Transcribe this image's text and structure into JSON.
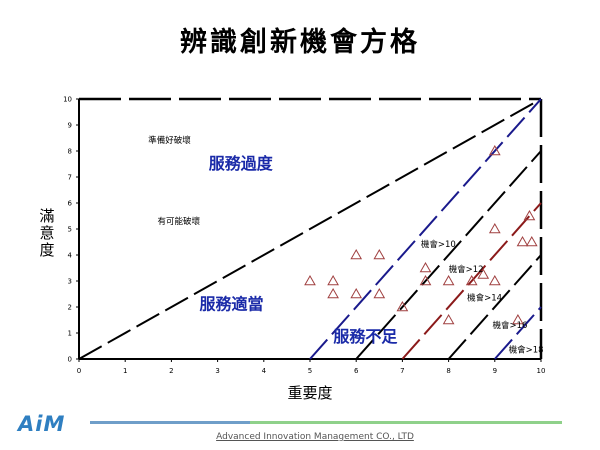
{
  "title": "辨識創新機會方格",
  "y_label": "滿意度",
  "x_label": "重要度",
  "footer": {
    "logo_text": "AiM",
    "company": "Advanced Innovation Management CO., LTD"
  },
  "colors": {
    "region_label": "#1a2aa8",
    "diagonal_blue": "#1a1a8c",
    "diagonal_red": "#8b1a1a",
    "marker": "#a04040",
    "footer_blue": "#6f9ec9",
    "footer_green": "#8fd18a"
  },
  "chart_data": {
    "type": "scatter",
    "xlim": [
      0,
      10
    ],
    "ylim": [
      0,
      10
    ],
    "x_ticks": [
      0,
      1,
      2,
      3,
      4,
      5,
      6,
      7,
      8,
      9,
      10
    ],
    "y_ticks": [
      0,
      1,
      2,
      3,
      4,
      5,
      6,
      7,
      8,
      9,
      10
    ],
    "grid": false,
    "points": [
      {
        "x": 5.0,
        "y": 3.0
      },
      {
        "x": 5.5,
        "y": 3.0
      },
      {
        "x": 5.5,
        "y": 2.5
      },
      {
        "x": 6.0,
        "y": 4.0
      },
      {
        "x": 6.0,
        "y": 2.5
      },
      {
        "x": 6.5,
        "y": 4.0
      },
      {
        "x": 6.5,
        "y": 2.5
      },
      {
        "x": 7.0,
        "y": 2.0
      },
      {
        "x": 7.5,
        "y": 3.5
      },
      {
        "x": 7.5,
        "y": 3.0
      },
      {
        "x": 8.0,
        "y": 3.0
      },
      {
        "x": 8.0,
        "y": 1.5
      },
      {
        "x": 8.5,
        "y": 3.0
      },
      {
        "x": 8.75,
        "y": 3.25
      },
      {
        "x": 9.0,
        "y": 8.0
      },
      {
        "x": 9.0,
        "y": 5.0
      },
      {
        "x": 9.0,
        "y": 3.0
      },
      {
        "x": 9.5,
        "y": 1.5
      },
      {
        "x": 9.6,
        "y": 4.5
      },
      {
        "x": 9.75,
        "y": 5.5
      },
      {
        "x": 9.8,
        "y": 4.5
      }
    ],
    "boundary_lines": [
      {
        "from": [
          0,
          0
        ],
        "to": [
          10,
          10
        ],
        "color": "black",
        "dashed": true
      },
      {
        "from": [
          5,
          0
        ],
        "to": [
          10,
          10
        ],
        "color": "blue",
        "dashed": true
      },
      {
        "from": [
          6,
          0
        ],
        "to": [
          10,
          8
        ],
        "color": "black",
        "dashed": true
      },
      {
        "from": [
          7,
          0
        ],
        "to": [
          10,
          6
        ],
        "color": "red",
        "dashed": true
      },
      {
        "from": [
          8,
          0
        ],
        "to": [
          10,
          4
        ],
        "color": "black",
        "dashed": true
      },
      {
        "from": [
          9,
          0
        ],
        "to": [
          10,
          2
        ],
        "color": "blue",
        "dashed": true
      }
    ],
    "region_labels": [
      {
        "text": "服務過度",
        "x": 3.5,
        "y": 7.3
      },
      {
        "text": "服務適當",
        "x": 3.3,
        "y": 1.9
      },
      {
        "text": "服務不足",
        "x": 6.2,
        "y": 0.65
      }
    ],
    "annotations": [
      {
        "text": "準備好破壞",
        "x": 1.5,
        "y": 8.3
      },
      {
        "text": "有可能破壞",
        "x": 1.7,
        "y": 5.2
      },
      {
        "text": "機會>10",
        "x": 7.4,
        "y": 4.3
      },
      {
        "text": "機會>12",
        "x": 8.0,
        "y": 3.35
      },
      {
        "text": "機會>14",
        "x": 8.4,
        "y": 2.25
      },
      {
        "text": "機會>16",
        "x": 8.95,
        "y": 1.2
      },
      {
        "text": "機會>18",
        "x": 9.3,
        "y": 0.25
      }
    ]
  }
}
